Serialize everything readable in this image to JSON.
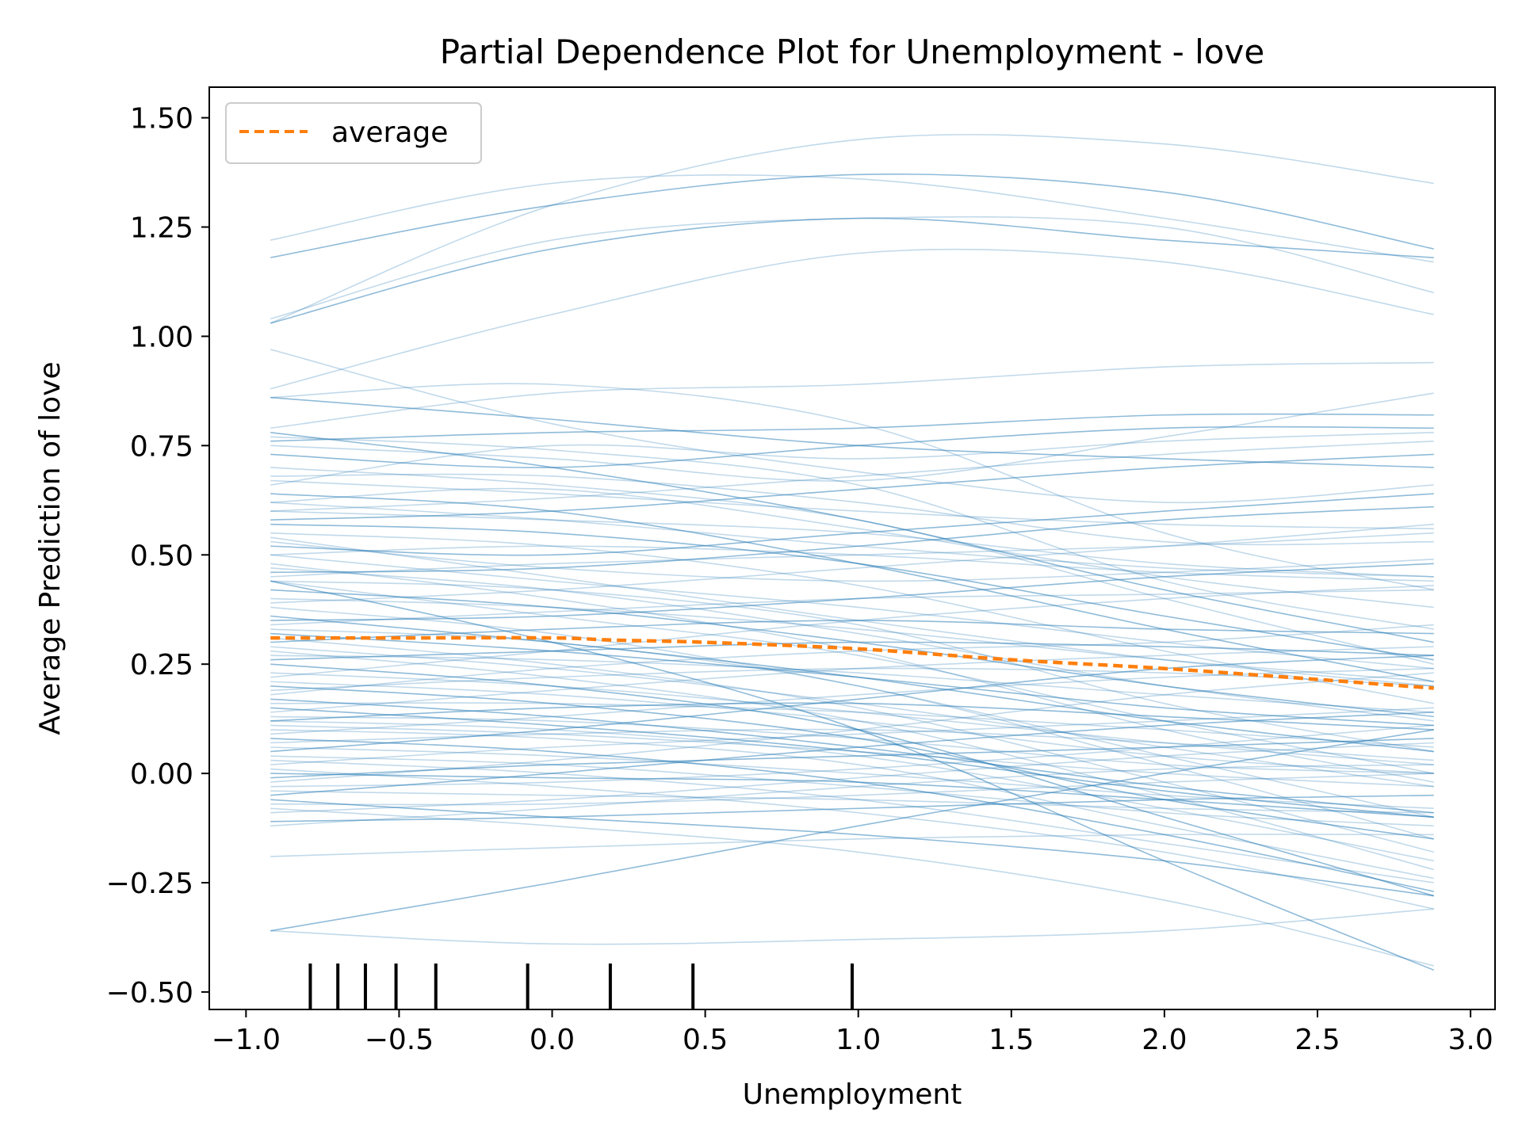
{
  "chart_data": {
    "type": "line",
    "title": "Partial Dependence Plot for Unemployment - love",
    "xlabel": "Unemployment",
    "ylabel": "Average Prediction of love",
    "xlim": [
      -1.12,
      3.08
    ],
    "ylim": [
      -0.54,
      1.57
    ],
    "xticks": [
      -1.0,
      -0.5,
      0.0,
      0.5,
      1.0,
      1.5,
      2.0,
      2.5,
      3.0
    ],
    "xtick_labels": [
      "−1.0",
      "−0.5",
      "0.0",
      "0.5",
      "1.0",
      "1.5",
      "2.0",
      "2.5",
      "3.0"
    ],
    "yticks": [
      -0.5,
      -0.25,
      0.0,
      0.25,
      0.5,
      0.75,
      1.0,
      1.25,
      1.5
    ],
    "ytick_labels": [
      "−0.50",
      "−0.25",
      "0.00",
      "0.25",
      "0.50",
      "0.75",
      "1.00",
      "1.25",
      "1.50"
    ],
    "grid": false,
    "legend": {
      "position": "top-left",
      "entries": [
        "average"
      ]
    },
    "colors": {
      "ice": "#1f77b4",
      "average": "#ff7f0e",
      "rug": "#000000"
    },
    "x_grid": [
      -0.92,
      0.0,
      1.0,
      2.0,
      2.88
    ],
    "average": {
      "name": "average",
      "x": [
        -0.92,
        -0.5,
        0.0,
        0.2,
        0.5,
        1.0,
        1.5,
        2.0,
        2.5,
        2.88
      ],
      "y": [
        0.31,
        0.31,
        0.31,
        0.305,
        0.3,
        0.285,
        0.26,
        0.24,
        0.215,
        0.195
      ]
    },
    "ice_lines": [
      [
        1.22,
        1.35,
        1.36,
        1.27,
        1.17
      ],
      [
        1.18,
        1.3,
        1.37,
        1.33,
        1.2
      ],
      [
        1.04,
        1.22,
        1.27,
        1.25,
        1.1
      ],
      [
        1.03,
        1.3,
        1.45,
        1.44,
        1.35
      ],
      [
        1.03,
        1.2,
        1.27,
        1.22,
        1.18
      ],
      [
        0.88,
        1.05,
        1.19,
        1.17,
        1.05
      ],
      [
        0.97,
        0.8,
        0.69,
        0.62,
        0.66
      ],
      [
        0.86,
        0.81,
        0.75,
        0.72,
        0.7
      ],
      [
        0.86,
        0.89,
        0.8,
        0.55,
        0.42
      ],
      [
        0.79,
        0.87,
        0.89,
        0.93,
        0.94
      ],
      [
        0.78,
        0.7,
        0.58,
        0.42,
        0.3
      ],
      [
        0.77,
        0.74,
        0.66,
        0.44,
        0.33
      ],
      [
        0.75,
        0.72,
        0.67,
        0.77,
        0.87
      ],
      [
        0.73,
        0.7,
        0.75,
        0.79,
        0.79
      ],
      [
        0.68,
        0.68,
        0.62,
        0.53,
        0.53
      ],
      [
        0.66,
        0.75,
        0.72,
        0.76,
        0.78
      ],
      [
        0.64,
        0.6,
        0.48,
        0.33,
        0.21
      ],
      [
        0.62,
        0.65,
        0.56,
        0.45,
        0.38
      ],
      [
        0.6,
        0.58,
        0.55,
        0.48,
        0.45
      ],
      [
        0.58,
        0.6,
        0.65,
        0.7,
        0.73
      ],
      [
        0.55,
        0.52,
        0.43,
        0.28,
        0.16
      ],
      [
        0.54,
        0.45,
        0.35,
        0.26,
        0.2
      ],
      [
        0.52,
        0.5,
        0.55,
        0.6,
        0.64
      ],
      [
        0.5,
        0.52,
        0.5,
        0.46,
        0.44
      ],
      [
        0.48,
        0.4,
        0.28,
        0.1,
        -0.02
      ],
      [
        0.46,
        0.47,
        0.52,
        0.58,
        0.61
      ],
      [
        0.44,
        0.36,
        0.27,
        0.12,
        0.0
      ],
      [
        0.44,
        0.42,
        0.34,
        0.16,
        0.05
      ],
      [
        0.42,
        0.38,
        0.3,
        0.2,
        0.13
      ],
      [
        0.4,
        0.38,
        0.33,
        0.26,
        0.21
      ],
      [
        0.38,
        0.32,
        0.2,
        0.04,
        -0.1
      ],
      [
        0.35,
        0.36,
        0.4,
        0.45,
        0.48
      ],
      [
        0.33,
        0.3,
        0.2,
        0.02,
        -0.15
      ],
      [
        0.31,
        0.25,
        0.15,
        -0.02,
        -0.18
      ],
      [
        0.3,
        0.33,
        0.35,
        0.33,
        0.32
      ],
      [
        0.28,
        0.22,
        0.12,
        -0.05,
        -0.22
      ],
      [
        0.27,
        0.26,
        0.23,
        0.18,
        0.14
      ],
      [
        0.25,
        0.2,
        0.1,
        -0.1,
        -0.28
      ],
      [
        0.22,
        0.28,
        0.35,
        0.4,
        0.43
      ],
      [
        0.21,
        0.18,
        0.12,
        0.04,
        0.0
      ],
      [
        0.2,
        0.16,
        0.08,
        -0.06,
        -0.15
      ],
      [
        0.18,
        0.24,
        0.28,
        0.3,
        0.34
      ],
      [
        0.16,
        0.16,
        0.14,
        0.1,
        0.06
      ],
      [
        0.15,
        0.11,
        0.05,
        -0.04,
        -0.1
      ],
      [
        0.14,
        0.19,
        0.24,
        0.27,
        0.29
      ],
      [
        0.13,
        0.12,
        0.08,
        0.02,
        0.0
      ],
      [
        0.12,
        0.15,
        0.16,
        0.13,
        0.1
      ],
      [
        0.1,
        0.08,
        0.02,
        -0.12,
        -0.24
      ],
      [
        0.09,
        0.13,
        0.18,
        0.22,
        0.24
      ],
      [
        0.08,
        0.05,
        -0.02,
        -0.14,
        -0.27
      ],
      [
        0.07,
        0.09,
        0.1,
        0.07,
        0.03
      ],
      [
        0.06,
        0.04,
        0.0,
        -0.05,
        -0.08
      ],
      [
        0.05,
        0.1,
        0.17,
        0.24,
        0.27
      ],
      [
        0.04,
        0.02,
        -0.03,
        -0.09,
        -0.12
      ],
      [
        0.02,
        0.06,
        0.09,
        0.12,
        0.15
      ],
      [
        0.0,
        -0.01,
        -0.02,
        -0.06,
        -0.1
      ],
      [
        -0.02,
        0.03,
        0.1,
        0.18,
        0.23
      ],
      [
        -0.04,
        -0.05,
        -0.06,
        -0.08,
        -0.09
      ],
      [
        -0.05,
        0.0,
        0.06,
        0.11,
        0.14
      ],
      [
        -0.07,
        -0.07,
        -0.05,
        -0.02,
        0.0
      ],
      [
        -0.09,
        -0.06,
        -0.01,
        0.04,
        0.07
      ],
      [
        -0.11,
        -0.1,
        -0.08,
        -0.06,
        -0.05
      ],
      [
        -0.12,
        -0.08,
        -0.03,
        0.01,
        0.02
      ],
      [
        -0.19,
        -0.17,
        -0.15,
        -0.14,
        -0.14
      ],
      [
        -0.36,
        -0.25,
        -0.12,
        0.0,
        0.1
      ],
      [
        -0.36,
        -0.39,
        -0.38,
        -0.36,
        -0.31
      ],
      [
        0.7,
        0.66,
        0.58,
        0.4,
        0.25
      ],
      [
        0.57,
        0.55,
        0.48,
        0.36,
        0.26
      ],
      [
        0.5,
        0.44,
        0.38,
        0.3,
        0.24
      ],
      [
        0.45,
        0.48,
        0.5,
        0.52,
        0.55
      ],
      [
        0.36,
        0.3,
        0.22,
        0.12,
        0.05
      ],
      [
        0.34,
        0.37,
        0.4,
        0.41,
        0.42
      ],
      [
        0.29,
        0.24,
        0.16,
        0.06,
        -0.03
      ],
      [
        0.26,
        0.28,
        0.3,
        0.29,
        0.27
      ],
      [
        0.23,
        0.2,
        0.14,
        0.07,
        0.02
      ],
      [
        0.19,
        0.22,
        0.24,
        0.23,
        0.2
      ],
      [
        0.17,
        0.13,
        0.06,
        -0.03,
        -0.09
      ],
      [
        0.11,
        0.09,
        0.05,
        0.0,
        -0.03
      ],
      [
        0.03,
        0.0,
        -0.06,
        -0.16,
        -0.25
      ],
      [
        -0.01,
        0.02,
        0.04,
        0.06,
        0.08
      ],
      [
        -0.03,
        -0.02,
        0.01,
        0.06,
        0.11
      ],
      [
        -0.08,
        -0.12,
        -0.18,
        -0.29,
        -0.44
      ],
      [
        0.44,
        0.3,
        0.1,
        -0.2,
        -0.45
      ],
      [
        0.62,
        0.58,
        0.52,
        0.47,
        0.45
      ],
      [
        0.67,
        0.64,
        0.6,
        0.57,
        0.56
      ],
      [
        0.76,
        0.78,
        0.79,
        0.82,
        0.82
      ],
      [
        0.53,
        0.47,
        0.44,
        0.46,
        0.49
      ],
      [
        0.47,
        0.42,
        0.32,
        0.2,
        0.12
      ],
      [
        0.32,
        0.28,
        0.22,
        0.15,
        0.11
      ],
      [
        0.12,
        0.1,
        0.04,
        -0.08,
        -0.2
      ],
      [
        0.01,
        -0.03,
        -0.09,
        -0.18,
        -0.31
      ],
      [
        -0.06,
        -0.1,
        -0.14,
        -0.2,
        -0.28
      ],
      [
        0.6,
        0.63,
        0.68,
        0.73,
        0.76
      ],
      [
        0.39,
        0.42,
        0.47,
        0.52,
        0.57
      ]
    ],
    "rug": [
      -0.79,
      -0.7,
      -0.61,
      -0.51,
      -0.38,
      -0.08,
      0.19,
      0.46,
      0.98
    ]
  }
}
